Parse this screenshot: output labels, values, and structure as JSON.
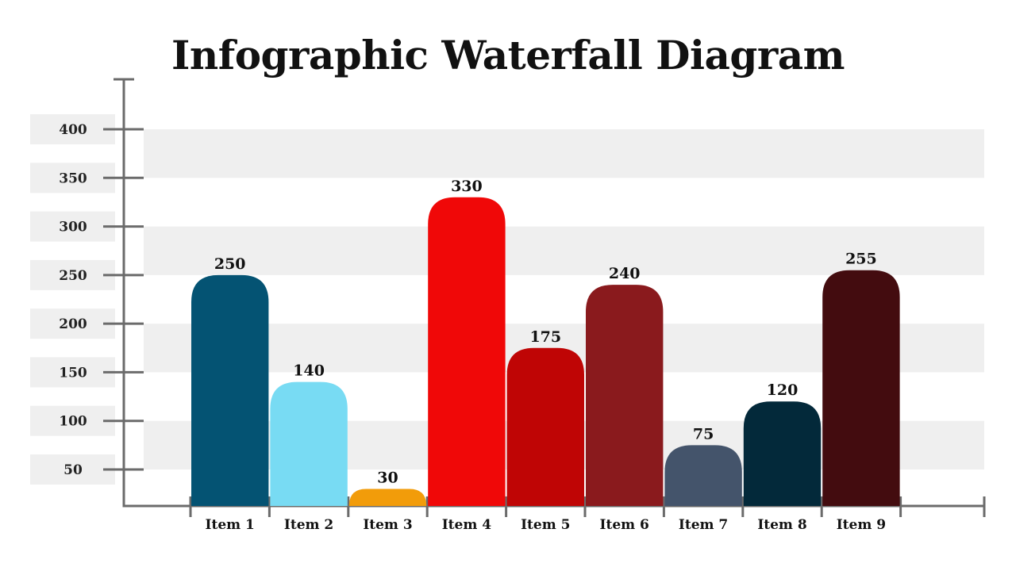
{
  "chart_data": {
    "type": "bar",
    "title": "Infographic Waterfall Diagram",
    "categories": [
      "Item 1",
      "Item 2",
      "Item 3",
      "Item 4",
      "Item 5",
      "Item 6",
      "Item 7",
      "Item 8",
      "Item 9"
    ],
    "values": [
      250,
      140,
      30,
      330,
      175,
      240,
      75,
      120,
      255
    ],
    "colors": [
      "#045373",
      "#78DBF3",
      "#F29C0A",
      "#F00808",
      "#BF0505",
      "#8A1A1D",
      "#44546B",
      "#03293A",
      "#430C0F"
    ],
    "yticks": [
      50,
      100,
      150,
      200,
      250,
      300,
      350,
      400
    ],
    "ylim": [
      0,
      400
    ],
    "xlabel": "",
    "ylabel": "",
    "grid": "alternating horizontal bands",
    "band_color": "#EFEFEF",
    "axis_color": "#6B6B6B"
  }
}
